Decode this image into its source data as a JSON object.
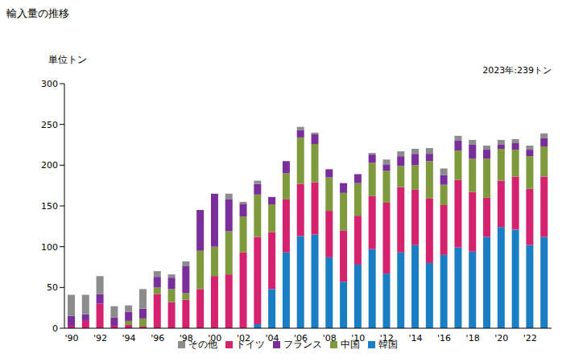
{
  "chart_data": {
    "type": "bar",
    "title": "輸入量の推移",
    "y_label": "単位トン",
    "annotation": "2023年:239トン",
    "stacked": true,
    "grid": false,
    "legend": "bottom",
    "categories": [
      "'90",
      null,
      "'92",
      null,
      "'94",
      null,
      "'96",
      null,
      "'98",
      null,
      "'00",
      null,
      "'02",
      null,
      "'04",
      null,
      "'06",
      null,
      "'08",
      null,
      "'10",
      null,
      "'12",
      null,
      "'14",
      null,
      "'16",
      null,
      "'18",
      null,
      "'20",
      null,
      "'22",
      null
    ],
    "ylim": [
      0,
      300
    ],
    "yticks": [
      0,
      50,
      100,
      150,
      200,
      250,
      300
    ],
    "series": [
      {
        "name": "韓国",
        "color": "#1a7ec4",
        "values": [
          0,
          0,
          0,
          0,
          0,
          0,
          0,
          0,
          0,
          0,
          0,
          0,
          0,
          5,
          48,
          93,
          113,
          115,
          87,
          57,
          78,
          97,
          67,
          93,
          102,
          80,
          90,
          99,
          94,
          112,
          124,
          121,
          102,
          112
        ]
      },
      {
        "name": "ドイツ",
        "color": "#d4226e",
        "values": [
          3,
          9,
          30,
          3,
          4,
          2,
          42,
          32,
          35,
          48,
          64,
          66,
          93,
          107,
          70,
          65,
          64,
          64,
          57,
          63,
          60,
          65,
          87,
          80,
          68,
          79,
          61,
          83,
          73,
          48,
          57,
          65,
          69,
          74
        ]
      },
      {
        "name": "中国",
        "color": "#7f9a3c",
        "values": [
          0,
          0,
          0,
          0,
          5,
          10,
          8,
          16,
          8,
          47,
          36,
          53,
          44,
          52,
          34,
          32,
          57,
          47,
          41,
          46,
          40,
          41,
          39,
          26,
          30,
          46,
          25,
          36,
          41,
          48,
          39,
          33,
          40,
          37
        ]
      },
      {
        "name": "フランス",
        "color": "#7a2e9c",
        "values": [
          12,
          8,
          12,
          10,
          11,
          12,
          13,
          14,
          33,
          50,
          65,
          39,
          15,
          13,
          9,
          15,
          9,
          12,
          10,
          12,
          11,
          10,
          8,
          12,
          14,
          9,
          12,
          12,
          17,
          11,
          5,
          8,
          8,
          10
        ]
      },
      {
        "name": "その他",
        "color": "#8c8c8c",
        "values": [
          26,
          24,
          22,
          14,
          8,
          24,
          7,
          4,
          6,
          0,
          0,
          7,
          3,
          4,
          0,
          0,
          4,
          2,
          0,
          0,
          0,
          2,
          6,
          6,
          6,
          7,
          8,
          6,
          6,
          5,
          6,
          5,
          5,
          6
        ]
      }
    ]
  }
}
